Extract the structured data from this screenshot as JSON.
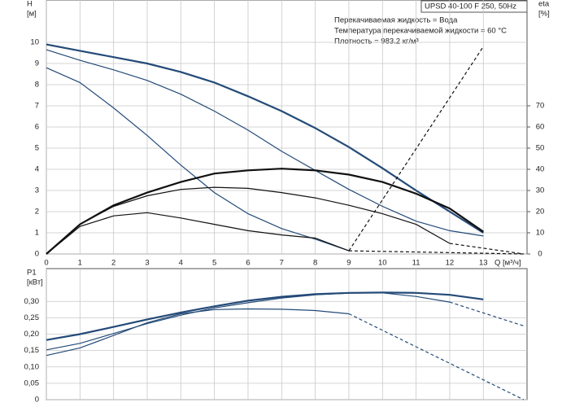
{
  "chart_data": [
    {
      "type": "line",
      "title": "UPSD 40-100 F 250, 50Hz",
      "annotations": [
        "Перекачиваемая жидкость = Вода",
        "Температура перекачиваемой жидкости = 60 °C",
        "Плотность = 983.2 кг/м³"
      ],
      "xlabel": "Q [м³/ч]",
      "ylabel": "H",
      "yunit": "[м]",
      "y2label": "eta",
      "y2unit": "[%]",
      "xlim": [
        0,
        14.3
      ],
      "xticks": [
        0,
        1,
        2,
        3,
        4,
        5,
        6,
        7,
        8,
        9,
        10,
        11,
        12,
        13
      ],
      "ylim": [
        0,
        12
      ],
      "yticks": [
        0,
        1,
        2,
        3,
        4,
        5,
        6,
        7,
        8,
        9,
        10
      ],
      "y2lim": [
        0,
        120
      ],
      "y2ticks": [
        0,
        10,
        20,
        30,
        40,
        50,
        60,
        70
      ],
      "grid": true,
      "series": [
        {
          "color": "#244a78",
          "line_width": 2.2,
          "dashed": false,
          "x": [
            0,
            1,
            2,
            3,
            4,
            5,
            6,
            7,
            8,
            9,
            10,
            11,
            12,
            13
          ],
          "values": [
            9.9,
            9.6,
            9.3,
            9.0,
            8.6,
            8.1,
            7.45,
            6.75,
            5.95,
            5.05,
            4.05,
            3.0,
            2.0,
            1.0
          ]
        },
        {
          "color": "#244a78",
          "line_width": 1.2,
          "dashed": false,
          "x": [
            0,
            1,
            2,
            3,
            4,
            5,
            6,
            7,
            8,
            9,
            10,
            11,
            12,
            13
          ],
          "values": [
            9.65,
            9.15,
            8.7,
            8.2,
            7.55,
            6.75,
            5.85,
            4.85,
            3.95,
            3.05,
            2.25,
            1.55,
            1.1,
            0.85
          ]
        },
        {
          "color": "#244a78",
          "line_width": 1.2,
          "dashed": false,
          "x": [
            0,
            1,
            2,
            3,
            4,
            5,
            6,
            7,
            8,
            9
          ],
          "values": [
            8.8,
            8.1,
            6.9,
            5.6,
            4.2,
            2.9,
            1.9,
            1.2,
            0.7,
            0.15
          ]
        },
        {
          "color": "#111111",
          "line_width": 2.2,
          "dashed": false,
          "axis": "y2",
          "x": [
            0,
            1,
            2,
            3,
            4,
            5,
            6,
            7,
            8,
            9,
            10,
            11,
            12,
            13
          ],
          "values": [
            0,
            14,
            23,
            29,
            34,
            38,
            39.5,
            40.3,
            39.5,
            37.5,
            34,
            28.5,
            21.5,
            10.5
          ]
        },
        {
          "color": "#111111",
          "line_width": 1.2,
          "dashed": false,
          "axis": "y2",
          "x": [
            0,
            1,
            2,
            3,
            4,
            5,
            6,
            7,
            8,
            9,
            10,
            11,
            12
          ],
          "values": [
            0,
            14,
            22.5,
            27.5,
            30.5,
            31.5,
            31,
            29,
            26.5,
            23,
            19,
            14,
            5
          ]
        },
        {
          "color": "#111111",
          "line_width": 1.2,
          "dashed": false,
          "axis": "y2",
          "x": [
            0,
            1,
            2,
            3,
            4,
            5,
            6,
            7,
            8,
            9
          ],
          "values": [
            0,
            13,
            18,
            19.5,
            17,
            14,
            11,
            9,
            7.5,
            1.5
          ]
        },
        {
          "color": "#111111",
          "line_width": 1.2,
          "dashed": true,
          "axis": "y2",
          "x": [
            12,
            14.2
          ],
          "values": [
            5,
            0
          ]
        },
        {
          "color": "#111111",
          "line_width": 1.2,
          "dashed": true,
          "axis": "y2",
          "x": [
            9,
            14.2
          ],
          "values": [
            1.5,
            0
          ]
        },
        {
          "color": "#111111",
          "line_width": 1.2,
          "dashed": true,
          "x": [
            9,
            13
          ],
          "values": [
            0.15,
            9.8
          ]
        }
      ]
    },
    {
      "type": "line",
      "ylabel": "P1",
      "yunit": "[кВт]",
      "xlim": [
        0,
        14.3
      ],
      "ylim": [
        0,
        0.4
      ],
      "yticks": [
        0,
        {
          "value": 0.05,
          "label": "0,05"
        },
        {
          "value": 0.1,
          "label": "0,10"
        },
        {
          "value": 0.15,
          "label": "0,15"
        },
        {
          "value": 0.2,
          "label": "0,20"
        },
        {
          "value": 0.25,
          "label": "0,25"
        },
        {
          "value": 0.3,
          "label": "0,30"
        }
      ],
      "grid": true,
      "series": [
        {
          "color": "#244a78",
          "line_width": 2.2,
          "dashed": false,
          "x": [
            0,
            1,
            2,
            3,
            4,
            5,
            6,
            7,
            8,
            9,
            10,
            11,
            12,
            13
          ],
          "values": [
            0.182,
            0.2,
            0.222,
            0.245,
            0.266,
            0.285,
            0.302,
            0.314,
            0.322,
            0.326,
            0.327,
            0.326,
            0.32,
            0.306
          ]
        },
        {
          "color": "#244a78",
          "line_width": 1.2,
          "dashed": false,
          "x": [
            0,
            1,
            2,
            3,
            4,
            5,
            6,
            7,
            8,
            9,
            10,
            11,
            12
          ],
          "values": [
            0.152,
            0.172,
            0.202,
            0.232,
            0.258,
            0.28,
            0.296,
            0.31,
            0.32,
            0.325,
            0.326,
            0.315,
            0.298
          ]
        },
        {
          "color": "#244a78",
          "line_width": 1.2,
          "dashed": false,
          "x": [
            0,
            1,
            2,
            3,
            4,
            5,
            6,
            7,
            8,
            9
          ],
          "values": [
            0.135,
            0.158,
            0.196,
            0.235,
            0.262,
            0.275,
            0.277,
            0.276,
            0.272,
            0.262
          ]
        },
        {
          "color": "#244a78",
          "line_width": 1.2,
          "dashed": true,
          "x": [
            12,
            14.2
          ],
          "values": [
            0.298,
            0.225
          ]
        },
        {
          "color": "#244a78",
          "line_width": 1.2,
          "dashed": true,
          "x": [
            9,
            14.2
          ],
          "values": [
            0.262,
            0
          ]
        }
      ]
    }
  ]
}
